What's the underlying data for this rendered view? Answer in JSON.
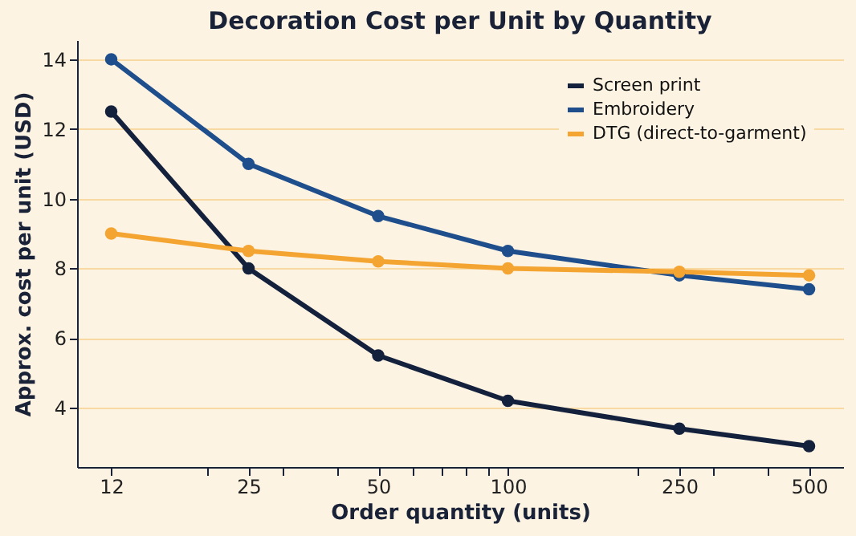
{
  "chart_data": {
    "type": "line",
    "title": "Decoration Cost per Unit by Quantity",
    "xlabel": "Order quantity (units)",
    "ylabel": "Approx. cost per unit (USD)",
    "x": [
      12,
      25,
      50,
      100,
      250,
      500
    ],
    "series": [
      {
        "name": "Screen print",
        "color": "#14213d",
        "values": [
          12.5,
          8.0,
          5.5,
          4.2,
          3.4,
          2.9
        ]
      },
      {
        "name": "Embroidery",
        "color": "#1f4e8c",
        "values": [
          14.0,
          11.0,
          9.5,
          8.5,
          7.8,
          7.4
        ]
      },
      {
        "name": "DTG (direct-to-garment)",
        "color": "#f4a431",
        "values": [
          9.0,
          8.5,
          8.2,
          8.0,
          7.9,
          7.8
        ]
      }
    ],
    "log": "x",
    "xlim": [
      10,
      600
    ],
    "xticks": [
      12,
      25,
      50,
      100,
      250,
      500,
      {
        "value": 20,
        "label": null
      },
      {
        "value": 30,
        "label": null
      },
      {
        "value": 40,
        "label": null
      },
      {
        "value": 60,
        "label": null
      },
      {
        "value": 70,
        "label": null
      },
      {
        "value": 80,
        "label": null
      },
      {
        "value": 90,
        "label": null
      },
      {
        "value": 200,
        "label": null
      },
      {
        "value": 300,
        "label": null
      },
      {
        "value": 400,
        "label": null
      }
    ],
    "ylim": [
      2.3,
      14.55
    ],
    "yticks": [
      4,
      6,
      8,
      10,
      12,
      14
    ],
    "grid": "y",
    "legend": "top right",
    "marker": "circle",
    "line_style": "solid"
  }
}
